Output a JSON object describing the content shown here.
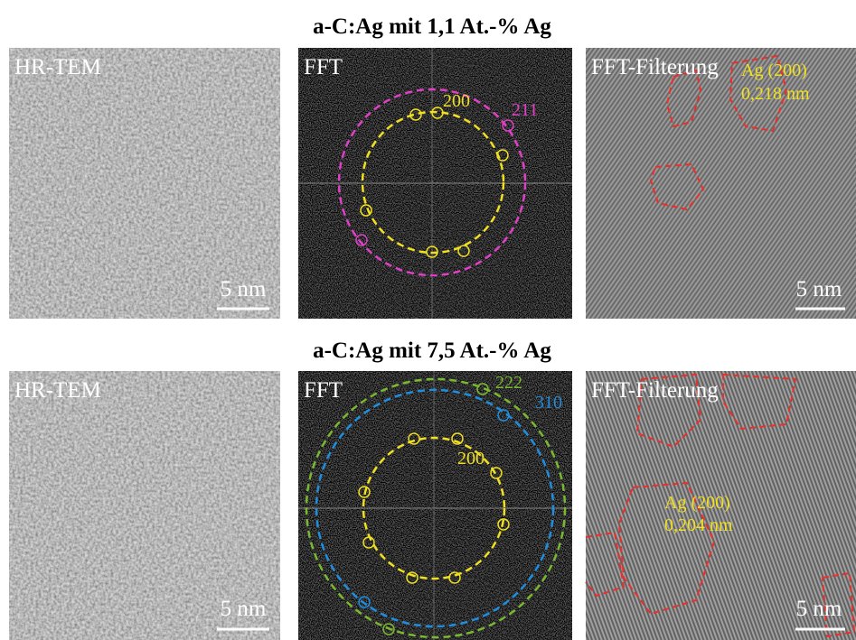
{
  "rows": [
    {
      "title": "a-C:Ag mit 1,1 At.-% Ag",
      "hrtem": {
        "label": "HR-TEM",
        "scale_bar": "5 nm"
      },
      "fft": {
        "label": "FFT",
        "rings": [
          "200",
          "211"
        ]
      },
      "filtered": {
        "label": "FFT-Filterung",
        "annotation": "Ag (200)",
        "spacing": "0,218 nm",
        "scale_bar": "5 nm"
      }
    },
    {
      "title": "a-C:Ag mit 7,5 At.-% Ag",
      "hrtem": {
        "label": "HR-TEM",
        "scale_bar": "5 nm"
      },
      "fft": {
        "label": "FFT",
        "rings": [
          "222",
          "310",
          "200"
        ]
      },
      "filtered": {
        "label": "FFT-Filterung",
        "annotation": "Ag (200)",
        "spacing": "0,204 nm",
        "scale_bar": "5 nm"
      }
    }
  ]
}
